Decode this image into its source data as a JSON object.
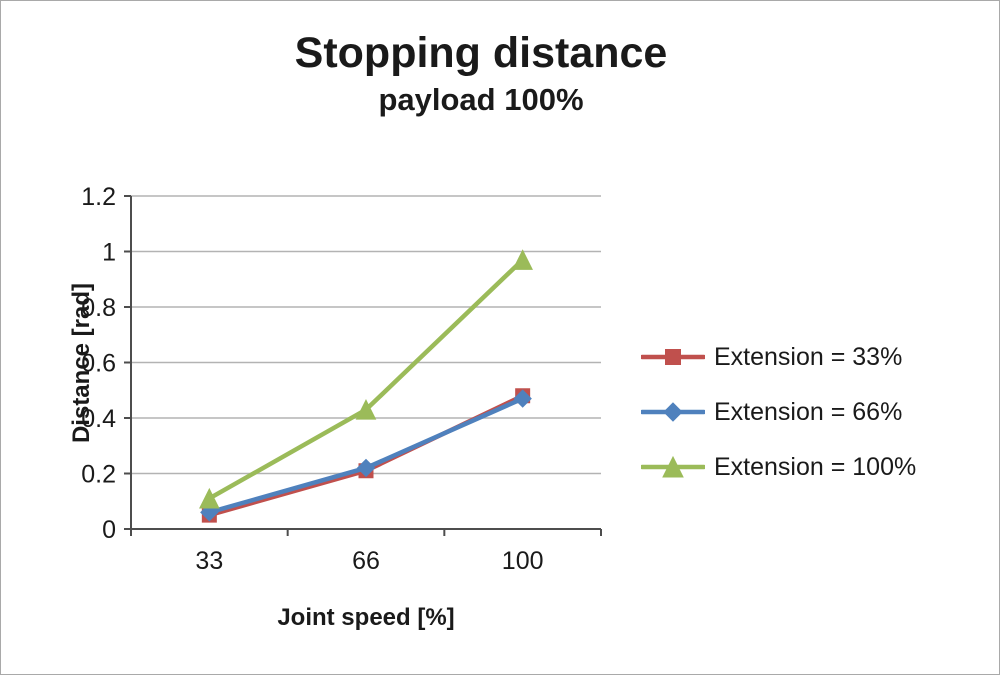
{
  "window": {
    "background": "#ffffff",
    "border_color": "#a9a9a9"
  },
  "chart_data": {
    "type": "line",
    "title": "Stopping distance",
    "subtitle": "payload 100%",
    "xlabel": "Joint speed [%]",
    "ylabel": "Distance [rad]",
    "categories": [
      "33",
      "66",
      "100"
    ],
    "series": [
      {
        "name": "Extension = 33%",
        "color": "#c0504d",
        "marker": "square",
        "values": [
          0.05,
          0.21,
          0.48
        ]
      },
      {
        "name": "Extension = 66%",
        "color": "#4f81bd",
        "marker": "diamond",
        "values": [
          0.06,
          0.22,
          0.47
        ]
      },
      {
        "name": "Extension = 100%",
        "color": "#9bbb59",
        "marker": "triangle",
        "values": [
          0.11,
          0.43,
          0.97
        ]
      }
    ],
    "ylim": [
      0,
      1.2
    ],
    "yticks": [
      "0",
      "0.2",
      "0.4",
      "0.6",
      "0.8",
      "1",
      "1.2"
    ],
    "grid": true,
    "legend_position": "right",
    "grid_color": "#b3b3b3",
    "axis_color": "#4d4d4d",
    "text_color": "#1a1a1a"
  }
}
